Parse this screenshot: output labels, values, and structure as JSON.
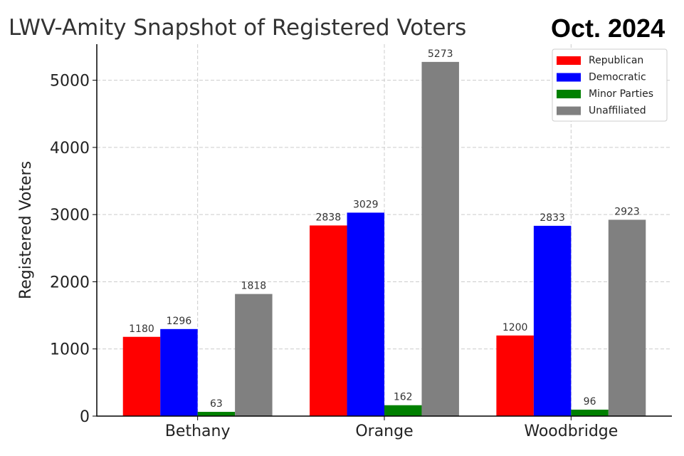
{
  "chart_data": {
    "type": "bar",
    "title": "LWV-Amity Snapshot of Registered Voters",
    "stamp": "Oct. 2024",
    "xlabel": "",
    "ylabel": "Registered Voters",
    "categories": [
      "Bethany",
      "Orange",
      "Woodbridge"
    ],
    "series": [
      {
        "name": "Republican",
        "color": "#ff0000",
        "values": [
          1180,
          2838,
          1200
        ]
      },
      {
        "name": "Democratic",
        "color": "#0000ff",
        "values": [
          1296,
          3029,
          2833
        ]
      },
      {
        "name": "Minor Parties",
        "color": "#008000",
        "values": [
          63,
          162,
          96
        ]
      },
      {
        "name": "Unaffiliated",
        "color": "#808080",
        "values": [
          1818,
          5273,
          2923
        ]
      }
    ],
    "ylim": [
      0,
      5537
    ],
    "yticks": [
      0,
      1000,
      2000,
      3000,
      4000,
      5000
    ],
    "grid": true,
    "legend": "top-right"
  }
}
